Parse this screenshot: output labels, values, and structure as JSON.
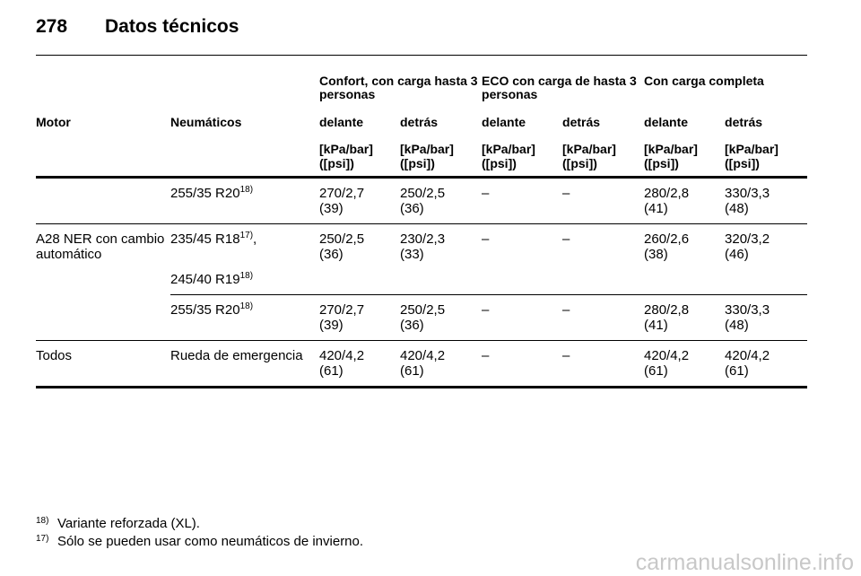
{
  "header": {
    "page_number": "278",
    "title": "Datos técnicos"
  },
  "table": {
    "group_headers": [
      "Confort, con carga hasta 3 personas",
      "ECO con carga de hasta 3 personas",
      "Con carga completa"
    ],
    "columns": [
      "Motor",
      "Neumáticos",
      "delante",
      "detrás",
      "delante",
      "detrás",
      "delante",
      "detrás"
    ],
    "units": [
      [
        "[kPa/bar]",
        "([psi])"
      ],
      [
        "[kPa/bar]",
        "([psi])"
      ],
      [
        "[kPa/bar]",
        "([psi])"
      ],
      [
        "[kPa/bar]",
        "([psi])"
      ],
      [
        "[kPa/bar]",
        "([psi])"
      ],
      [
        "[kPa/bar]",
        "([psi])"
      ]
    ],
    "groups": [
      {
        "rows": [
          {
            "tires": [
              {
                "text": "255/35 R20",
                "note": "18)"
              }
            ],
            "values": [
              [
                "270/2,7",
                "(39)"
              ],
              [
                "250/2,5",
                "(36)"
              ],
              [
                "–"
              ],
              [
                "–"
              ],
              [
                "280/2,8",
                "(41)"
              ],
              [
                "330/3,3",
                "(48)"
              ]
            ]
          }
        ]
      },
      {
        "motor": "A28 NER con cambio automático",
        "rows": [
          {
            "tires": [
              {
                "text": "235/45 R18",
                "note": "17)",
                "suffix": ","
              },
              {
                "text": "245/40 R19",
                "note": "18)"
              }
            ],
            "values": [
              [
                "250/2,5",
                "(36)"
              ],
              [
                "230/2,3",
                "(33)"
              ],
              [
                "–"
              ],
              [
                "–"
              ],
              [
                "260/2,6",
                "(38)"
              ],
              [
                "320/3,2",
                "(46)"
              ]
            ]
          },
          {
            "tires": [
              {
                "text": "255/35 R20",
                "note": "18)"
              }
            ],
            "values": [
              [
                "270/2,7",
                "(39)"
              ],
              [
                "250/2,5",
                "(36)"
              ],
              [
                "–"
              ],
              [
                "–"
              ],
              [
                "280/2,8",
                "(41)"
              ],
              [
                "330/3,3",
                "(48)"
              ]
            ]
          }
        ]
      },
      {
        "motor": "Todos",
        "rows": [
          {
            "tires": [
              {
                "text": "Rueda de emergencia"
              }
            ],
            "values": [
              [
                "420/4,2",
                "(61)"
              ],
              [
                "420/4,2",
                "(61)"
              ],
              [
                "–"
              ],
              [
                "–"
              ],
              [
                "420/4,2",
                "(61)"
              ],
              [
                "420/4,2",
                "(61)"
              ]
            ]
          }
        ]
      }
    ]
  },
  "footnotes": [
    {
      "mark": "18)",
      "text": "Variante reforzada (XL)."
    },
    {
      "mark": "17)",
      "text": "Sólo se pueden usar como neumáticos de invierno."
    }
  ],
  "watermark": "carmanualsonline.info"
}
